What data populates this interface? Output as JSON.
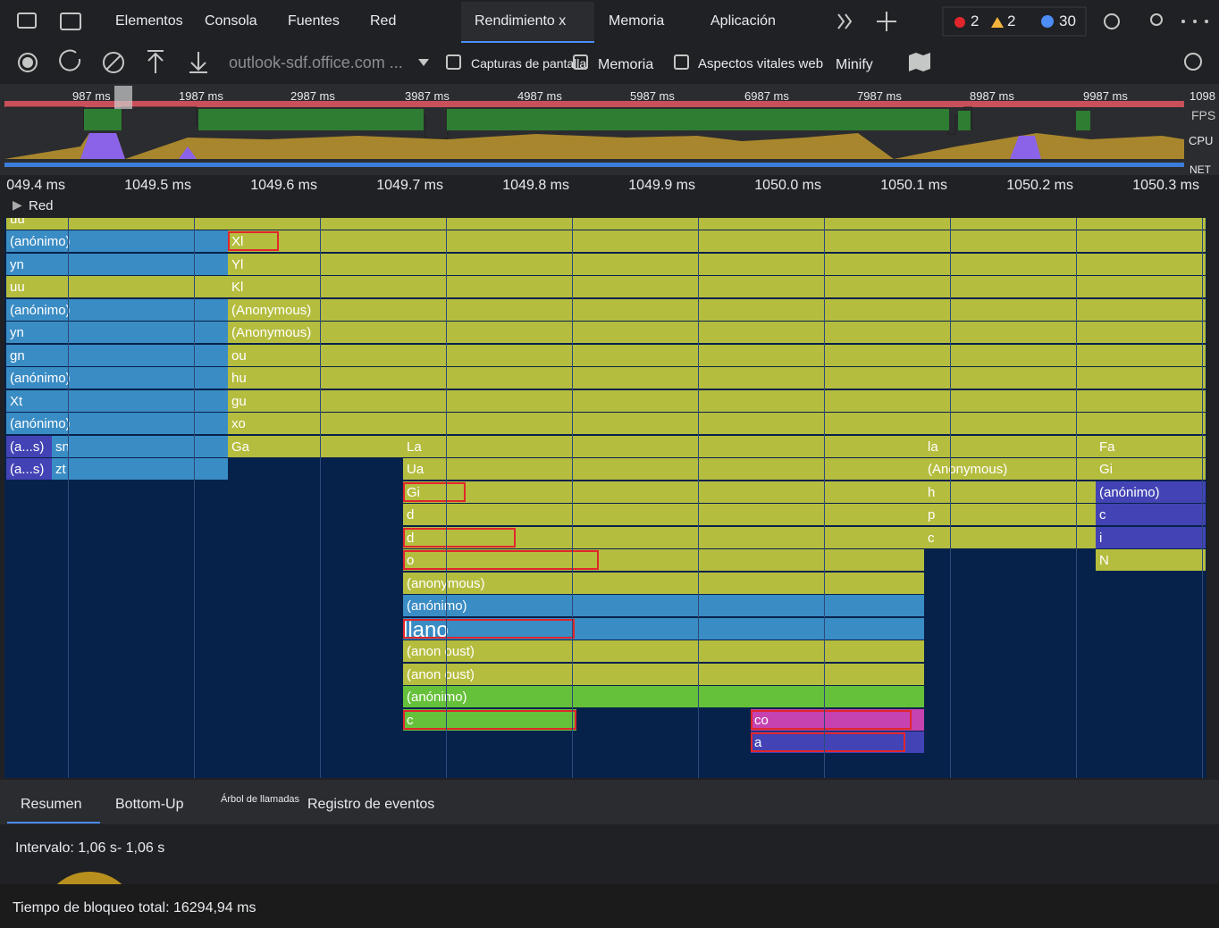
{
  "tabs": [
    "Elementos",
    "Consola",
    "Fuentes",
    "Red",
    "Rendimiento x",
    "Memoria",
    "Aplicación"
  ],
  "badges": {
    "errors": 2,
    "warnings": 2,
    "messages": 30
  },
  "toolbar": {
    "url": "outlook-sdf.office.com ...",
    "screenshots": "Capturas de pantalla",
    "memory": "Memoria",
    "vitals": "Aspectos vitales web",
    "minify": "Minify"
  },
  "overview": {
    "ticks": [
      "987 ms",
      "1987 ms",
      "2987 ms",
      "3987 ms",
      "4987 ms",
      "5987 ms",
      "6987 ms",
      "7987 ms",
      "8987 ms",
      "9987 ms",
      "1098"
    ],
    "fps": "FPS",
    "cpu": "CPU",
    "net": "NET"
  },
  "ruler": [
    "049.4 ms",
    "1049.5 ms",
    "1049.6 ms",
    "1049.7 ms",
    "1049.8 ms",
    "1049.9 ms",
    "1050.0 ms",
    "1050.1 ms",
    "1050.2 ms",
    "1050.3 ms"
  ],
  "track": "Red",
  "flame": {
    "rows": [
      [
        "uu"
      ],
      [
        "(anónimo)",
        "Xl"
      ],
      [
        "yn",
        "Yl"
      ],
      [
        "uu",
        "Kl"
      ],
      [
        "(anónimo)",
        "(Anonymous)"
      ],
      [
        "yn",
        "(Anonymous)"
      ],
      [
        "gn",
        "ou"
      ],
      [
        "(anónimo)",
        "hu"
      ],
      [
        "Xt",
        "gu"
      ],
      [
        "(anónimo)",
        "xo"
      ],
      [
        "(a...s)",
        "sn",
        "Ga",
        "La",
        "la",
        "Fa"
      ],
      [
        "(a...s)",
        "zt",
        "Ua",
        "(Anonymous)",
        "Gi"
      ],
      [
        "Gi",
        "h",
        "(anónimo)"
      ],
      [
        "d",
        "p",
        "c"
      ],
      [
        "d",
        "c",
        "i"
      ],
      [
        "o",
        "N"
      ],
      [
        "(anonymous)"
      ],
      [
        "(anónimo)"
      ],
      [
        "llano"
      ],
      [
        "(anon oust)"
      ],
      [
        "(anon oust)"
      ],
      [
        "(anónimo)"
      ],
      [
        "c",
        "co"
      ],
      [
        "a"
      ]
    ]
  },
  "bottom": {
    "tabs": [
      "Resumen",
      "Bottom-Up",
      "Árbol de llamadas",
      "Registro de eventos"
    ],
    "interval": "Intervalo: 1,06 s- 1,06 s",
    "blocking": "Tiempo de bloqueo total: 16294,94 ms"
  }
}
